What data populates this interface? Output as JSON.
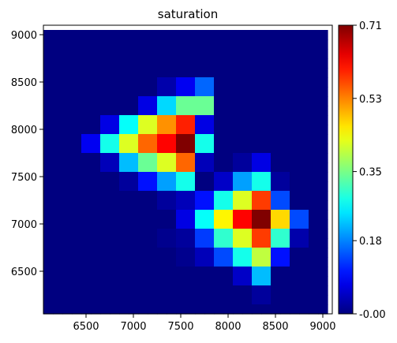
{
  "chart_data": {
    "type": "heatmap",
    "title": "saturation",
    "xlabel": "",
    "ylabel": "",
    "xlim": [
      6050,
      9100
    ],
    "ylim": [
      6050,
      9100
    ],
    "x_ticks": [
      6500,
      7000,
      7500,
      8000,
      8500,
      9000
    ],
    "y_ticks": [
      6500,
      7000,
      7500,
      8000,
      8500,
      9000
    ],
    "x_tick_labels": [
      "6500",
      "7000",
      "7500",
      "8000",
      "8500",
      "9000"
    ],
    "y_tick_labels": [
      "6500",
      "7000",
      "7500",
      "8000",
      "8500",
      "9000"
    ],
    "cell_size": 100,
    "x_centers": [
      6100,
      6200,
      6300,
      6400,
      6500,
      6600,
      6700,
      6800,
      6900,
      7000,
      7100,
      7200,
      7300,
      7400,
      7500,
      7600,
      7700,
      7800,
      7900,
      8000,
      8100,
      8200,
      8300,
      8400,
      8500,
      8600,
      8700,
      8800,
      8900,
      9000
    ],
    "y_centers": [
      9000,
      8900,
      8800,
      8700,
      8600,
      8500,
      8400,
      8300,
      8200,
      8100,
      8000,
      7900,
      7800,
      7700,
      7600,
      7500,
      7400,
      7300,
      7200,
      7100,
      7000,
      6900,
      6800,
      6700,
      6600,
      6500,
      6400,
      6300,
      6200,
      6100
    ],
    "values": [
      [
        0,
        0,
        0,
        0,
        0,
        0,
        0,
        0,
        0,
        0,
        0,
        0,
        0,
        0,
        0,
        0,
        0,
        0,
        0,
        0,
        0,
        0,
        0,
        0,
        0,
        0,
        0,
        0,
        0,
        0
      ],
      [
        0,
        0,
        0,
        0,
        0,
        0,
        0,
        0,
        0,
        0,
        0,
        0,
        0,
        0,
        0,
        0,
        0,
        0,
        0,
        0,
        0,
        0,
        0,
        0,
        0,
        0,
        0,
        0,
        0,
        0
      ],
      [
        0,
        0,
        0,
        0,
        0,
        0,
        0,
        0,
        0,
        0,
        0,
        0,
        0,
        0,
        0,
        0,
        0,
        0,
        0,
        0,
        0,
        0,
        0,
        0,
        0,
        0,
        0,
        0,
        0,
        0
      ],
      [
        0,
        0,
        0,
        0,
        0,
        0,
        0,
        0,
        0,
        0,
        0,
        0,
        0,
        0,
        0,
        0,
        0,
        0,
        0,
        0,
        0,
        0,
        0,
        0,
        0,
        0,
        0,
        0,
        0,
        0
      ],
      [
        0,
        0,
        0,
        0,
        0,
        0,
        0,
        0,
        0,
        0,
        0,
        0,
        0,
        0,
        0,
        0,
        0,
        0,
        0,
        0,
        0,
        0,
        0,
        0,
        0,
        0,
        0,
        0,
        0,
        0
      ],
      [
        0,
        0,
        0,
        0,
        0,
        0,
        0,
        0,
        0,
        0,
        0,
        0,
        0.03,
        0.03,
        0.08,
        0.08,
        0.16,
        0.16,
        0,
        0,
        0,
        0,
        0,
        0,
        0,
        0,
        0,
        0,
        0,
        0
      ],
      [
        0,
        0,
        0,
        0,
        0,
        0,
        0,
        0,
        0,
        0,
        0,
        0,
        0.03,
        0.03,
        0.08,
        0.08,
        0.16,
        0.16,
        0,
        0,
        0,
        0,
        0,
        0,
        0,
        0,
        0,
        0,
        0,
        0
      ],
      [
        0,
        0,
        0,
        0,
        0,
        0,
        0,
        0,
        0,
        0,
        0.07,
        0.07,
        0.24,
        0.24,
        0.34,
        0.34,
        0.34,
        0.34,
        0,
        0,
        0,
        0,
        0,
        0,
        0,
        0,
        0,
        0,
        0,
        0
      ],
      [
        0,
        0,
        0,
        0,
        0,
        0,
        0,
        0,
        0,
        0,
        0.07,
        0.07,
        0.24,
        0.24,
        0.34,
        0.34,
        0.34,
        0.34,
        0,
        0,
        0,
        0,
        0,
        0,
        0,
        0,
        0,
        0,
        0,
        0
      ],
      [
        0,
        0,
        0,
        0,
        0,
        0,
        0.07,
        0.07,
        0.27,
        0.27,
        0.42,
        0.42,
        0.52,
        0.52,
        0.6,
        0.6,
        0.07,
        0.07,
        0,
        0,
        0,
        0,
        0,
        0,
        0,
        0,
        0,
        0,
        0,
        0
      ],
      [
        0,
        0,
        0,
        0,
        0,
        0,
        0.07,
        0.07,
        0.27,
        0.27,
        0.42,
        0.42,
        0.52,
        0.52,
        0.6,
        0.6,
        0.07,
        0.07,
        0,
        0,
        0,
        0,
        0,
        0,
        0,
        0,
        0,
        0,
        0,
        0
      ],
      [
        0,
        0,
        0,
        0,
        0.08,
        0.08,
        0.28,
        0.28,
        0.42,
        0.42,
        0.55,
        0.55,
        0.62,
        0.62,
        0.71,
        0.71,
        0.28,
        0.28,
        0,
        0,
        0,
        0,
        0,
        0,
        0,
        0,
        0,
        0,
        0,
        0
      ],
      [
        0,
        0,
        0,
        0,
        0.08,
        0.08,
        0.28,
        0.28,
        0.42,
        0.42,
        0.55,
        0.55,
        0.62,
        0.62,
        0.71,
        0.71,
        0.28,
        0.28,
        0,
        0,
        0,
        0,
        0,
        0,
        0,
        0,
        0,
        0,
        0,
        0
      ],
      [
        0,
        0,
        0,
        0,
        0,
        0,
        0.04,
        0.04,
        0.22,
        0.22,
        0.34,
        0.34,
        0.42,
        0.42,
        0.55,
        0.55,
        0.04,
        0.04,
        0,
        0,
        0.02,
        0.02,
        0.07,
        0.07,
        0,
        0,
        0,
        0,
        0,
        0
      ],
      [
        0,
        0,
        0,
        0,
        0,
        0,
        0.04,
        0.04,
        0.22,
        0.22,
        0.34,
        0.34,
        0.42,
        0.42,
        0.55,
        0.55,
        0.04,
        0.04,
        0,
        0,
        0.02,
        0.02,
        0.07,
        0.07,
        0,
        0,
        0,
        0,
        0,
        0
      ],
      [
        0,
        0,
        0,
        0,
        0,
        0,
        0,
        0,
        0.02,
        0.02,
        0.1,
        0.1,
        0.2,
        0.2,
        0.28,
        0.28,
        0,
        0,
        0.05,
        0.05,
        0.2,
        0.2,
        0.28,
        0.28,
        0.02,
        0.02,
        0,
        0,
        0,
        0
      ],
      [
        0,
        0,
        0,
        0,
        0,
        0,
        0,
        0,
        0.02,
        0.02,
        0.1,
        0.1,
        0.2,
        0.2,
        0.28,
        0.28,
        0,
        0,
        0.05,
        0.05,
        0.2,
        0.2,
        0.28,
        0.28,
        0.02,
        0.02,
        0,
        0,
        0,
        0
      ],
      [
        0,
        0,
        0,
        0,
        0,
        0,
        0,
        0,
        0,
        0,
        0,
        0,
        0.02,
        0.02,
        0.04,
        0.04,
        0.1,
        0.1,
        0.28,
        0.28,
        0.42,
        0.42,
        0.58,
        0.58,
        0.14,
        0.14,
        0,
        0,
        0,
        0
      ],
      [
        0,
        0,
        0,
        0,
        0,
        0,
        0,
        0,
        0,
        0,
        0,
        0,
        0.02,
        0.02,
        0.04,
        0.04,
        0.1,
        0.1,
        0.28,
        0.28,
        0.42,
        0.42,
        0.58,
        0.58,
        0.14,
        0.14,
        0,
        0,
        0,
        0
      ],
      [
        0,
        0,
        0,
        0,
        0,
        0,
        0,
        0,
        0,
        0,
        0,
        0,
        0,
        0,
        0.07,
        0.07,
        0.27,
        0.27,
        0.45,
        0.45,
        0.62,
        0.62,
        0.71,
        0.71,
        0.47,
        0.47,
        0.14,
        0.14,
        0,
        0
      ],
      [
        0,
        0,
        0,
        0,
        0,
        0,
        0,
        0,
        0,
        0,
        0,
        0,
        0,
        0,
        0.07,
        0.07,
        0.27,
        0.27,
        0.45,
        0.45,
        0.62,
        0.62,
        0.71,
        0.71,
        0.47,
        0.47,
        0.14,
        0.14,
        0,
        0
      ],
      [
        0,
        0,
        0,
        0,
        0,
        0,
        0,
        0,
        0,
        0,
        0,
        0,
        0.01,
        0.01,
        0.02,
        0.02,
        0.13,
        0.13,
        0.3,
        0.3,
        0.42,
        0.42,
        0.58,
        0.58,
        0.3,
        0.3,
        0.03,
        0.03,
        0,
        0
      ],
      [
        0,
        0,
        0,
        0,
        0,
        0,
        0,
        0,
        0,
        0,
        0,
        0,
        0.01,
        0.01,
        0.02,
        0.02,
        0.13,
        0.13,
        0.3,
        0.3,
        0.42,
        0.42,
        0.58,
        0.58,
        0.3,
        0.3,
        0.03,
        0.03,
        0,
        0
      ],
      [
        0,
        0,
        0,
        0,
        0,
        0,
        0,
        0,
        0,
        0,
        0,
        0,
        0,
        0,
        0.01,
        0.01,
        0.04,
        0.04,
        0.14,
        0.14,
        0.28,
        0.28,
        0.4,
        0.4,
        0.1,
        0.1,
        0,
        0,
        0,
        0
      ],
      [
        0,
        0,
        0,
        0,
        0,
        0,
        0,
        0,
        0,
        0,
        0,
        0,
        0,
        0,
        0.01,
        0.01,
        0.04,
        0.04,
        0.14,
        0.14,
        0.28,
        0.28,
        0.4,
        0.4,
        0.1,
        0.1,
        0,
        0,
        0,
        0
      ],
      [
        0,
        0,
        0,
        0,
        0,
        0,
        0,
        0,
        0,
        0,
        0,
        0,
        0,
        0,
        0,
        0,
        0,
        0,
        0,
        0,
        0.05,
        0.05,
        0.22,
        0.22,
        0,
        0,
        0,
        0,
        0,
        0
      ],
      [
        0,
        0,
        0,
        0,
        0,
        0,
        0,
        0,
        0,
        0,
        0,
        0,
        0,
        0,
        0,
        0,
        0,
        0,
        0,
        0,
        0.05,
        0.05,
        0.22,
        0.22,
        0,
        0,
        0,
        0,
        0,
        0
      ],
      [
        0,
        0,
        0,
        0,
        0,
        0,
        0,
        0,
        0,
        0,
        0,
        0,
        0,
        0,
        0,
        0,
        0,
        0,
        0,
        0,
        0,
        0,
        0.02,
        0.02,
        0,
        0,
        0,
        0,
        0,
        0
      ],
      [
        0,
        0,
        0,
        0,
        0,
        0,
        0,
        0,
        0,
        0,
        0,
        0,
        0,
        0,
        0,
        0,
        0,
        0,
        0,
        0,
        0,
        0,
        0.02,
        0.02,
        0,
        0,
        0,
        0,
        0,
        0
      ],
      [
        0,
        0,
        0,
        0,
        0,
        0,
        0,
        0,
        0,
        0,
        0,
        0,
        0,
        0,
        0,
        0,
        0,
        0,
        0,
        0,
        0,
        0,
        0,
        0,
        0,
        0,
        0,
        0,
        0,
        0
      ]
    ],
    "colormap": "jet",
    "colorbar": {
      "min": 0,
      "max": 0.71,
      "ticks": [
        0.0,
        0.18,
        0.35,
        0.53,
        0.71
      ],
      "tick_labels": [
        "-0.00",
        "0.18",
        "0.35",
        "0.53",
        "0.71"
      ],
      "position": "right"
    },
    "grid": false
  }
}
